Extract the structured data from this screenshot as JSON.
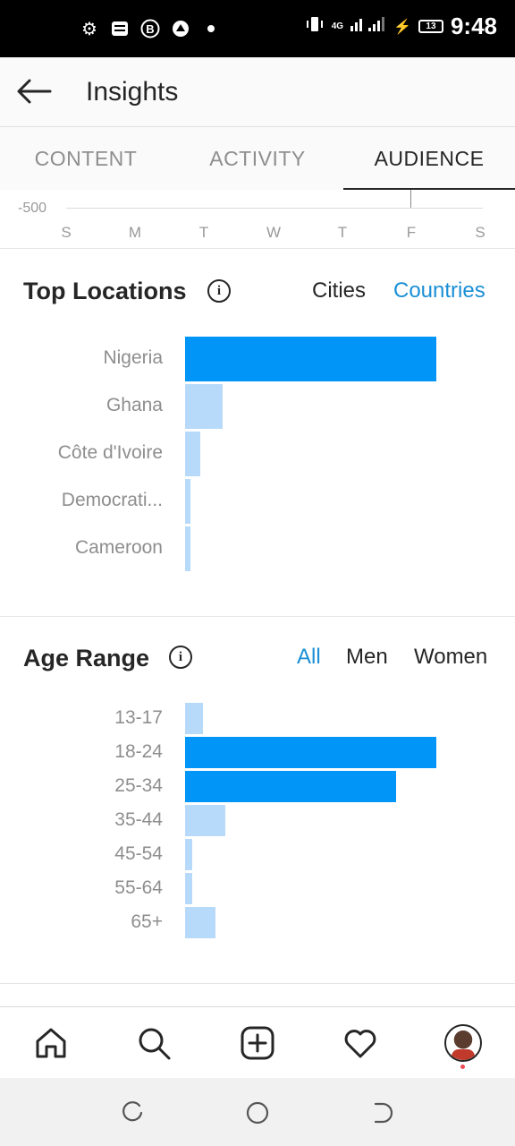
{
  "status_bar": {
    "time": "9:48",
    "battery": "13",
    "network": "4G",
    "left_icons": [
      "settings-icon",
      "message-icon",
      "b-badge-icon",
      "app-icon",
      "dot-icon"
    ]
  },
  "header": {
    "title": "Insights"
  },
  "tabs": [
    {
      "label": "CONTENT",
      "active": false
    },
    {
      "label": "ACTIVITY",
      "active": false
    },
    {
      "label": "AUDIENCE",
      "active": true
    }
  ],
  "activity_axis": {
    "y_label": "-500",
    "days": [
      "S",
      "M",
      "T",
      "W",
      "T",
      "F",
      "S"
    ]
  },
  "top_locations": {
    "title": "Top Locations",
    "toggles": [
      {
        "label": "Cities",
        "selected": false
      },
      {
        "label": "Countries",
        "selected": true
      }
    ]
  },
  "age_range": {
    "title": "Age Range",
    "toggles": [
      {
        "label": "All",
        "selected": true
      },
      {
        "label": "Men",
        "selected": false
      },
      {
        "label": "Women",
        "selected": false
      }
    ]
  },
  "colors": {
    "accent": "#0095f6",
    "bar_light": "#b8dafa",
    "toggle_selected": "#1a8fd6"
  },
  "chart_data": [
    {
      "type": "bar",
      "orientation": "horizontal",
      "title": "Top Locations",
      "categories": [
        "Nigeria",
        "Ghana",
        "Côte d'Ivoire",
        "Democrati...",
        "Cameroon"
      ],
      "values": [
        100,
        15,
        6,
        2,
        2
      ],
      "highlighted": [
        true,
        false,
        false,
        false,
        false
      ],
      "xlim": [
        0,
        100
      ]
    },
    {
      "type": "bar",
      "orientation": "horizontal",
      "title": "Age Range",
      "categories": [
        "13-17",
        "18-24",
        "25-34",
        "35-44",
        "45-54",
        "55-64",
        "65+"
      ],
      "values": [
        7,
        100,
        84,
        16,
        3,
        3,
        12
      ],
      "highlighted": [
        false,
        true,
        true,
        false,
        false,
        false,
        false
      ],
      "xlim": [
        0,
        100
      ]
    }
  ],
  "bottom_nav": [
    "home-icon",
    "search-icon",
    "add-post-icon",
    "activity-heart-icon",
    "profile-avatar"
  ],
  "system_nav": [
    "recents-icon",
    "home-circle-icon",
    "back-icon"
  ]
}
